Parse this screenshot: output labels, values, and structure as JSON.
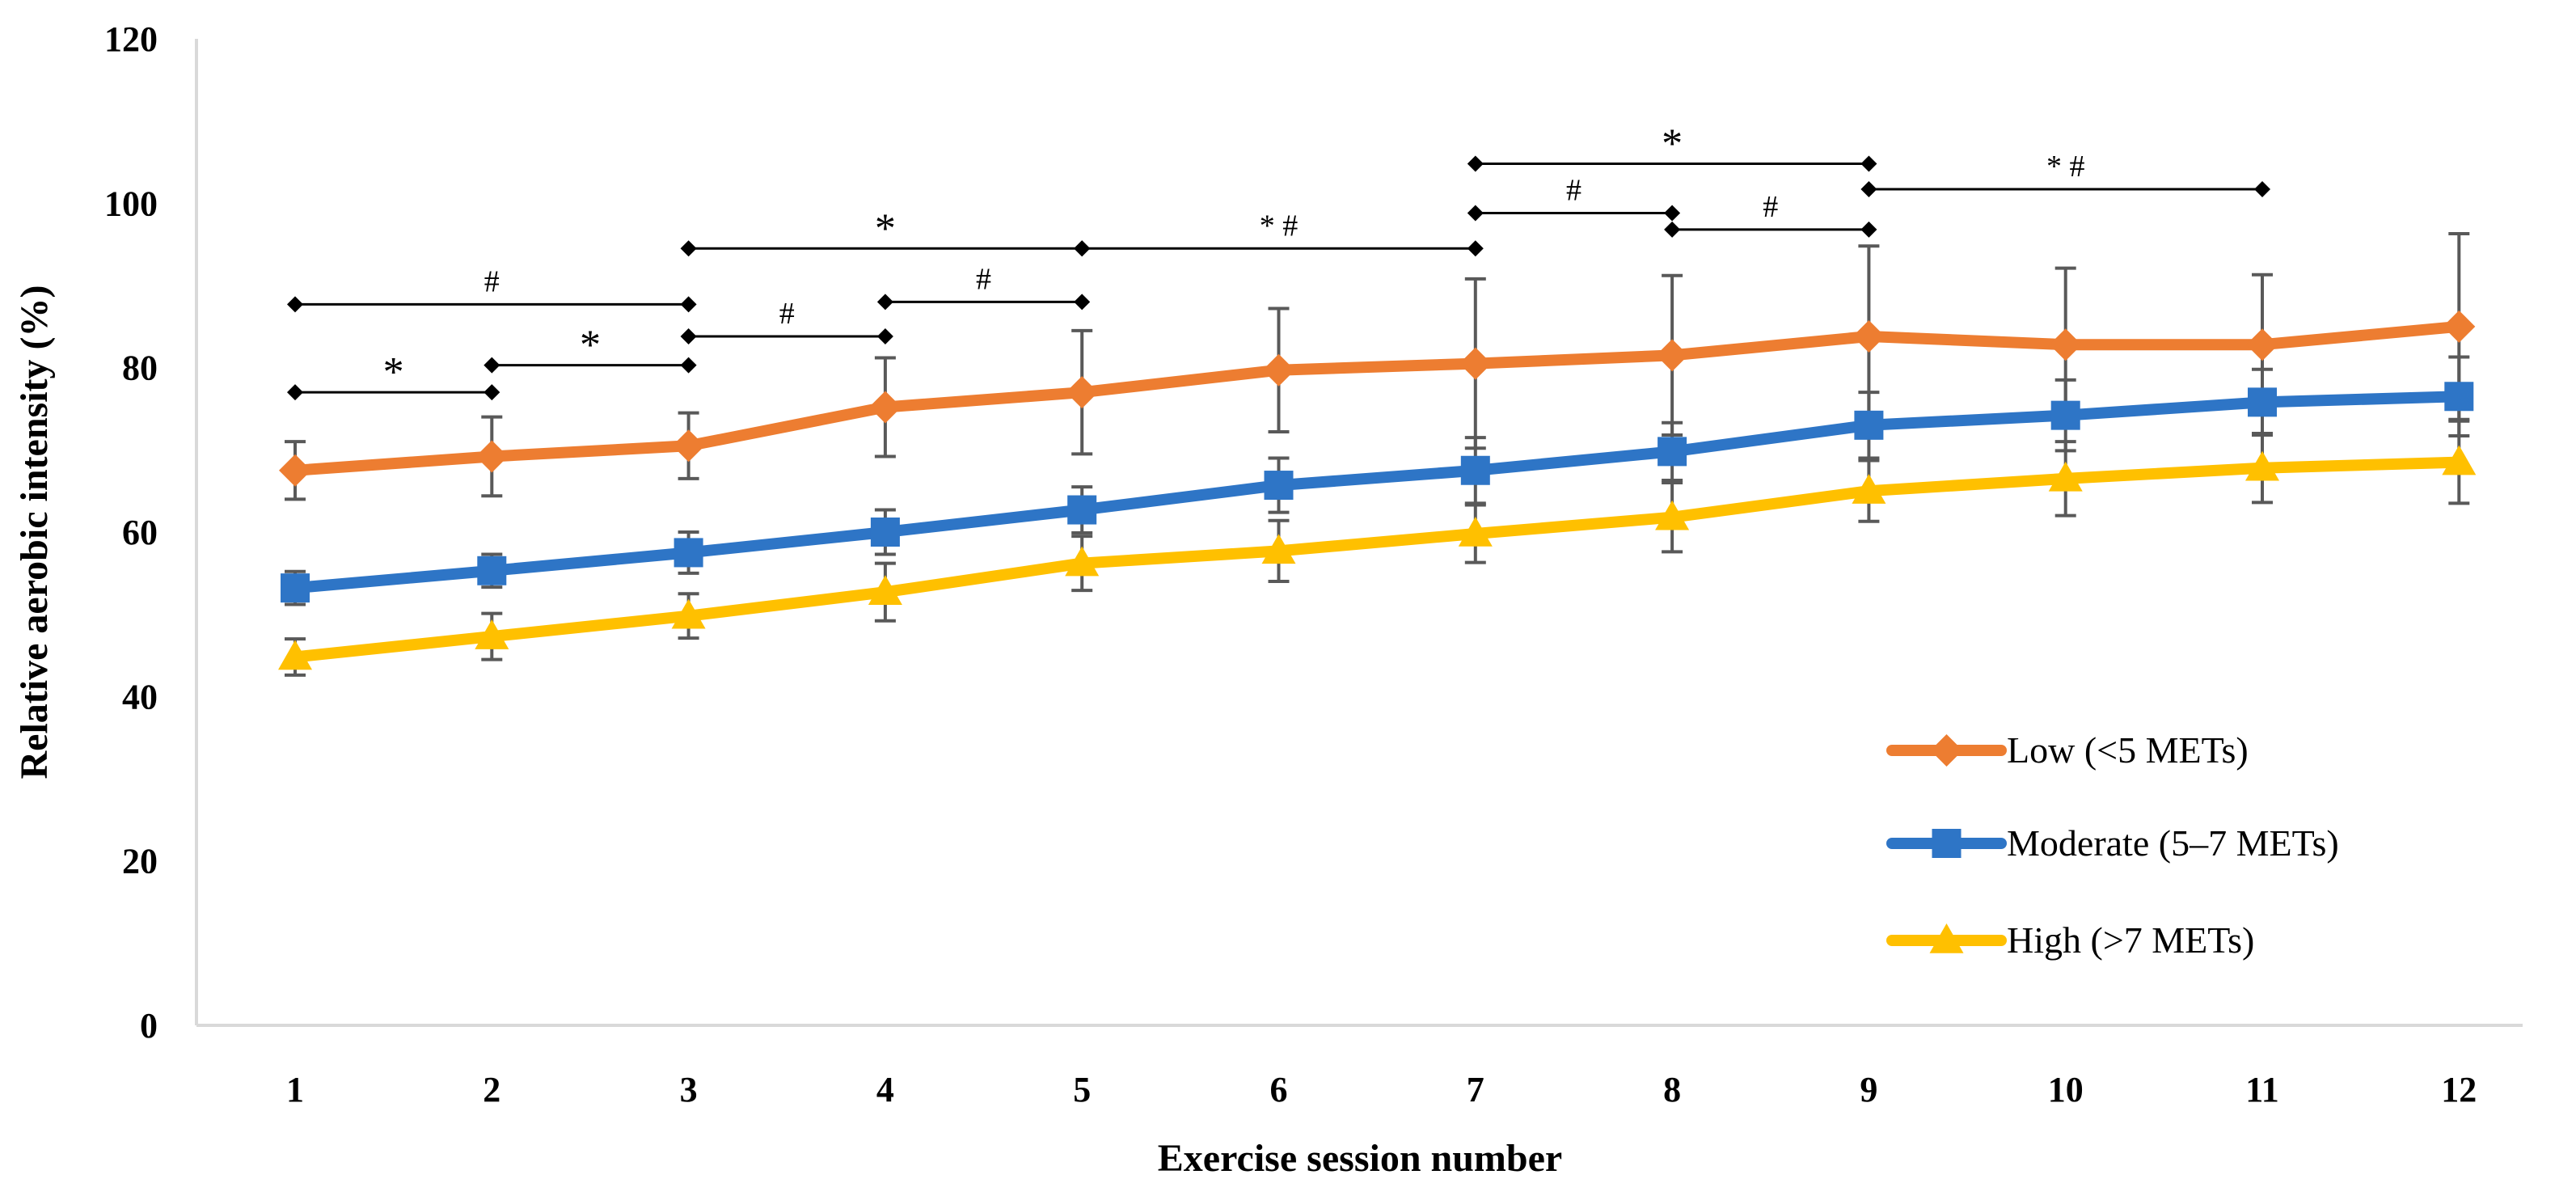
{
  "chart_data": {
    "type": "line",
    "title": "",
    "xlabel": "Exercise session number",
    "ylabel": "Relative aerobic intensity (%)",
    "ylim": [
      0,
      120
    ],
    "yticks": [
      0,
      20,
      40,
      60,
      80,
      100,
      120
    ],
    "ytick_labels": [
      "0",
      "20",
      "40",
      "60",
      "80",
      "100",
      "120"
    ],
    "categories": [
      "1",
      "2",
      "3",
      "4",
      "5",
      "6",
      "7",
      "8",
      "9",
      "10",
      "11",
      "12"
    ],
    "legend_position": "bottom-right",
    "grid": false,
    "series": [
      {
        "name": "Low (<5 METs)",
        "color": "#ED7D31",
        "marker": "diamond",
        "values": [
          67.5,
          69.2,
          70.5,
          75.2,
          77.0,
          79.7,
          80.5,
          81.5,
          83.8,
          82.8,
          82.8,
          85.0
        ],
        "error": [
          3.5,
          4.8,
          4.0,
          6.0,
          7.5,
          7.5,
          10.3,
          9.7,
          11.0,
          9.3,
          8.5,
          11.3
        ]
      },
      {
        "name": "Moderate (5–7 METs)",
        "color": "#2E75C6",
        "marker": "square",
        "values": [
          53.2,
          55.3,
          57.5,
          60.0,
          62.7,
          65.7,
          67.5,
          69.8,
          73.0,
          74.2,
          75.8,
          76.5
        ],
        "error": [
          2.0,
          2.0,
          2.5,
          2.7,
          2.8,
          3.3,
          4.0,
          3.5,
          4.0,
          4.3,
          4.0,
          4.8
        ]
      },
      {
        "name": "High (>7 METs)",
        "color": "#FFC000",
        "marker": "triangle",
        "values": [
          44.8,
          47.3,
          49.8,
          52.7,
          56.2,
          57.7,
          59.8,
          61.8,
          65.0,
          66.5,
          67.8,
          68.5
        ],
        "error": [
          2.2,
          2.8,
          2.7,
          3.5,
          3.3,
          3.7,
          3.5,
          4.2,
          3.7,
          4.5,
          4.2,
          5.0
        ]
      }
    ],
    "significance": [
      {
        "from": "1",
        "to": "2",
        "y": 77.0,
        "label": "*"
      },
      {
        "from": "1",
        "to": "3",
        "y": 87.7,
        "label": "#"
      },
      {
        "from": "2",
        "to": "3",
        "y": 80.3,
        "label": "*"
      },
      {
        "from": "3",
        "to": "4",
        "y": 83.8,
        "label": "#"
      },
      {
        "from": "3",
        "to": "5",
        "y": 94.5,
        "label": "*"
      },
      {
        "from": "4",
        "to": "5",
        "y": 88.0,
        "label": "#"
      },
      {
        "from": "5",
        "to": "7",
        "y": 94.5,
        "label": "* #"
      },
      {
        "from": "7",
        "to": "8",
        "y": 98.8,
        "label": "#"
      },
      {
        "from": "7",
        "to": "9",
        "y": 104.8,
        "label": "*"
      },
      {
        "from": "8",
        "to": "9",
        "y": 96.8,
        "label": "#"
      },
      {
        "from": "9",
        "to": "11",
        "y": 101.7,
        "label": "* #"
      }
    ]
  }
}
